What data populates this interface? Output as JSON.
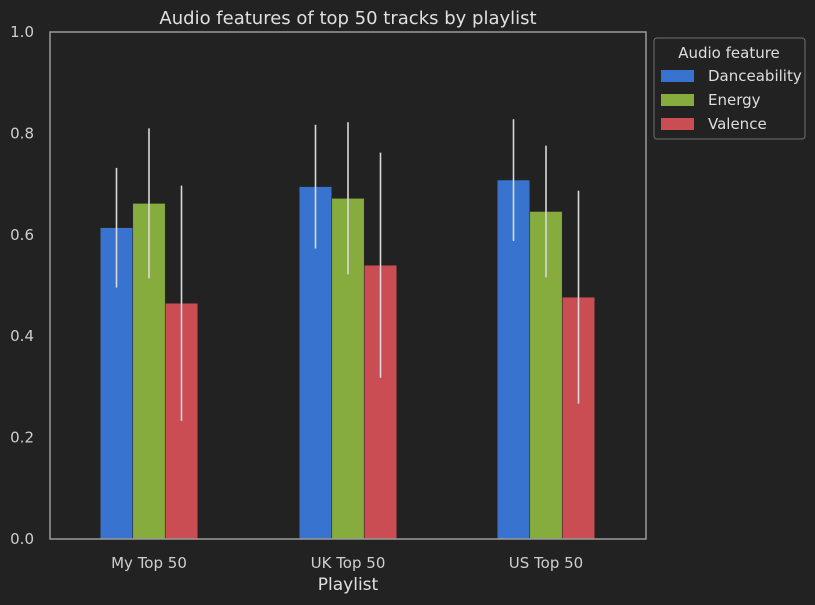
{
  "chart_data": {
    "type": "bar",
    "title": "Audio features of top 50 tracks by playlist",
    "xlabel": "Playlist",
    "ylabel": "",
    "ylim": [
      0.0,
      1.0
    ],
    "yticks": [
      "0.0",
      "0.2",
      "0.4",
      "0.6",
      "0.8",
      "1.0"
    ],
    "categories": [
      "My Top 50",
      "UK Top 50",
      "US Top 50"
    ],
    "legend": {
      "title": "Audio feature",
      "placement": "outside-top-right"
    },
    "grid": false,
    "series": [
      {
        "name": "Danceability",
        "color": "#3874cf",
        "values": [
          0.614,
          0.695,
          0.708
        ],
        "errors": [
          0.118,
          0.122,
          0.12
        ]
      },
      {
        "name": "Energy",
        "color": "#85ac3c",
        "values": [
          0.662,
          0.672,
          0.646
        ],
        "errors": [
          0.148,
          0.15,
          0.13
        ]
      },
      {
        "name": "Valence",
        "color": "#c94d52",
        "values": [
          0.465,
          0.54,
          0.477
        ],
        "errors": [
          0.232,
          0.222,
          0.21
        ]
      }
    ],
    "errorbar_color": "#d9d9d9"
  }
}
